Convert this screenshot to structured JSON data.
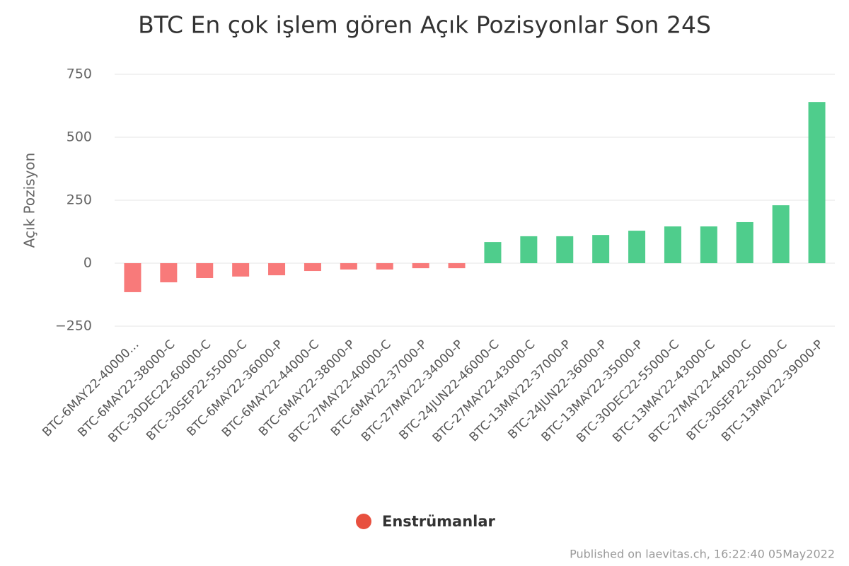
{
  "chart_data": {
    "type": "bar",
    "title": "BTC En çok işlem gören Açık Pozisyonlar Son 24S",
    "y_label": "Açık Pozisyon",
    "legend": "Enstrümanlar",
    "legend_color": "#e8503f",
    "footer": "Published on laevitas.ch, 16:22:40 05May2022",
    "categories": [
      "BTC-6MAY22-40000…",
      "BTC-6MAY22-38000-C",
      "BTC-30DEC22-60000-C",
      "BTC-30SEP22-55000-C",
      "BTC-6MAY22-36000-P",
      "BTC-6MAY22-44000-C",
      "BTC-6MAY22-38000-P",
      "BTC-27MAY22-40000-C",
      "BTC-6MAY22-37000-P",
      "BTC-27MAY22-34000-P",
      "BTC-24JUN22-46000-C",
      "BTC-27MAY22-43000-C",
      "BTC-13MAY22-37000-P",
      "BTC-24JUN22-36000-P",
      "BTC-13MAY22-35000-P",
      "BTC-30DEC22-55000-C",
      "BTC-13MAY22-43000-C",
      "BTC-27MAY22-44000-C",
      "BTC-30SEP22-50000-C",
      "BTC-13MAY22-39000-P"
    ],
    "values": [
      -115,
      -76,
      -59,
      -53,
      -48,
      -31,
      -25,
      -25,
      -20,
      -20,
      84,
      107,
      107,
      112,
      129,
      146,
      146,
      163,
      230,
      640
    ],
    "positive_color": "#4fcd8c",
    "negative_color": "#f87a7a",
    "ylim": [
      -250,
      750
    ],
    "yticks": [
      {
        "value": -250,
        "label": "−250"
      },
      0,
      250,
      500,
      750
    ],
    "grid": true
  }
}
